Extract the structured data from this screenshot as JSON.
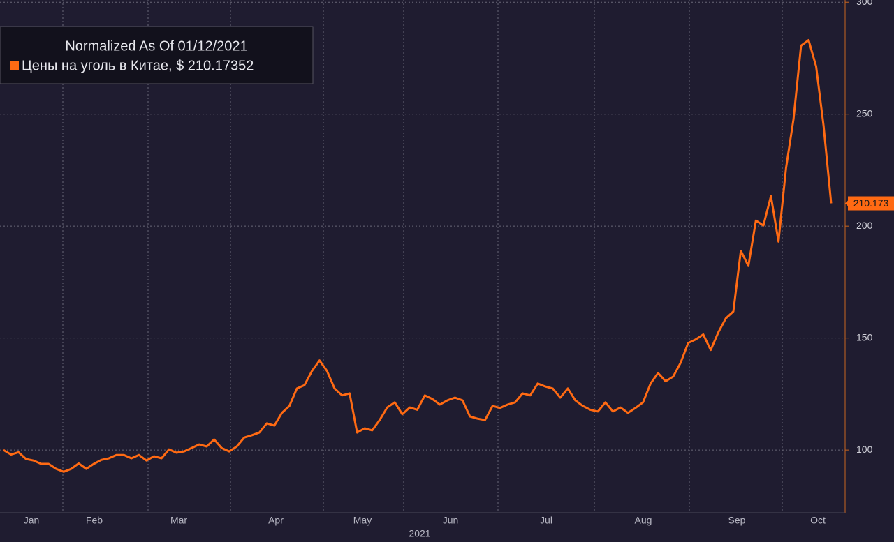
{
  "chart_data": {
    "type": "line",
    "legend_title": "Normalized As Of 01/12/2021",
    "series": [
      {
        "name": "Цены на уголь в Китае, $ 210.17352",
        "color": "#ff6a13",
        "values": [
          100,
          98,
          99,
          96,
          95.3,
          93.8,
          93.8,
          91.6,
          90.3,
          91.6,
          94,
          91.6,
          93.8,
          95.6,
          96.3,
          97.8,
          97.8,
          96.3,
          97.8,
          95.3,
          97.2,
          96.3,
          100.3,
          98.8,
          99.4,
          100.9,
          102.5,
          101.6,
          104.7,
          100.9,
          99.4,
          101.6,
          105.6,
          106.6,
          107.8,
          111.9,
          110.9,
          116.6,
          119.7,
          127.5,
          129,
          135.3,
          140,
          135.3,
          127.5,
          124.4,
          125.3,
          107.8,
          109.7,
          108.8,
          113.4,
          119,
          121.3,
          116,
          119,
          118,
          124.4,
          122.8,
          120.3,
          122.2,
          123.4,
          122.2,
          115,
          114,
          113.4,
          119.7,
          118.8,
          120.3,
          121.3,
          125.3,
          124.4,
          129.7,
          128.4,
          127.5,
          123.4,
          127.5,
          122.2,
          119.7,
          118,
          117.2,
          121.3,
          117.2,
          119,
          116.6,
          118.8,
          121.3,
          129.7,
          134.4,
          130.7,
          132.8,
          139,
          147.8,
          149.4,
          151.6,
          144.7,
          152.5,
          158.8,
          161.9,
          189,
          182.2,
          202.5,
          200.3,
          213.4,
          193.1,
          225.9,
          247.8,
          280.6,
          283.1,
          271.3,
          244.7,
          210.17352
        ]
      }
    ],
    "months": [
      "Jan",
      "Feb",
      "Mar",
      "Apr",
      "May",
      "Jun",
      "Jul",
      "Aug",
      "Sep",
      "Oct"
    ],
    "year_label": "2021",
    "ylim": [
      72,
      301
    ],
    "yticks": [
      100,
      150,
      200,
      250,
      300
    ],
    "last_value_label": "210.173",
    "grid": true
  }
}
